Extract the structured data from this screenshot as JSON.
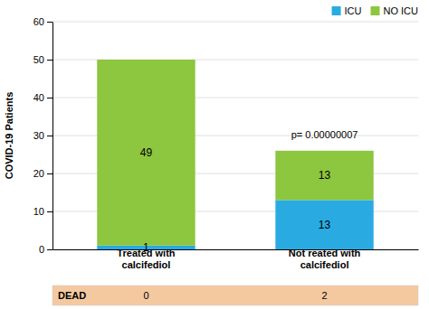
{
  "chart_data": {
    "type": "bar",
    "stacked": true,
    "categories": [
      "Treated with\ncalcifediol",
      "Not reated with\ncalcifediol"
    ],
    "series": [
      {
        "name": "ICU",
        "color": "#29ABE2",
        "values": [
          1,
          13
        ]
      },
      {
        "name": "NO ICU",
        "color": "#8DC63F",
        "values": [
          49,
          13
        ]
      }
    ],
    "y_label": "COVID-19 Patients",
    "ylim": [
      0,
      60
    ],
    "yticks": [
      0,
      10,
      20,
      30,
      40,
      50,
      60
    ],
    "grid": true,
    "legend": "upper right",
    "data_labels": true,
    "annotation": "p= 0.00000007",
    "table_row": {
      "label": "DEAD",
      "values": [
        0,
        2
      ],
      "color": "#F5C9A0"
    }
  }
}
